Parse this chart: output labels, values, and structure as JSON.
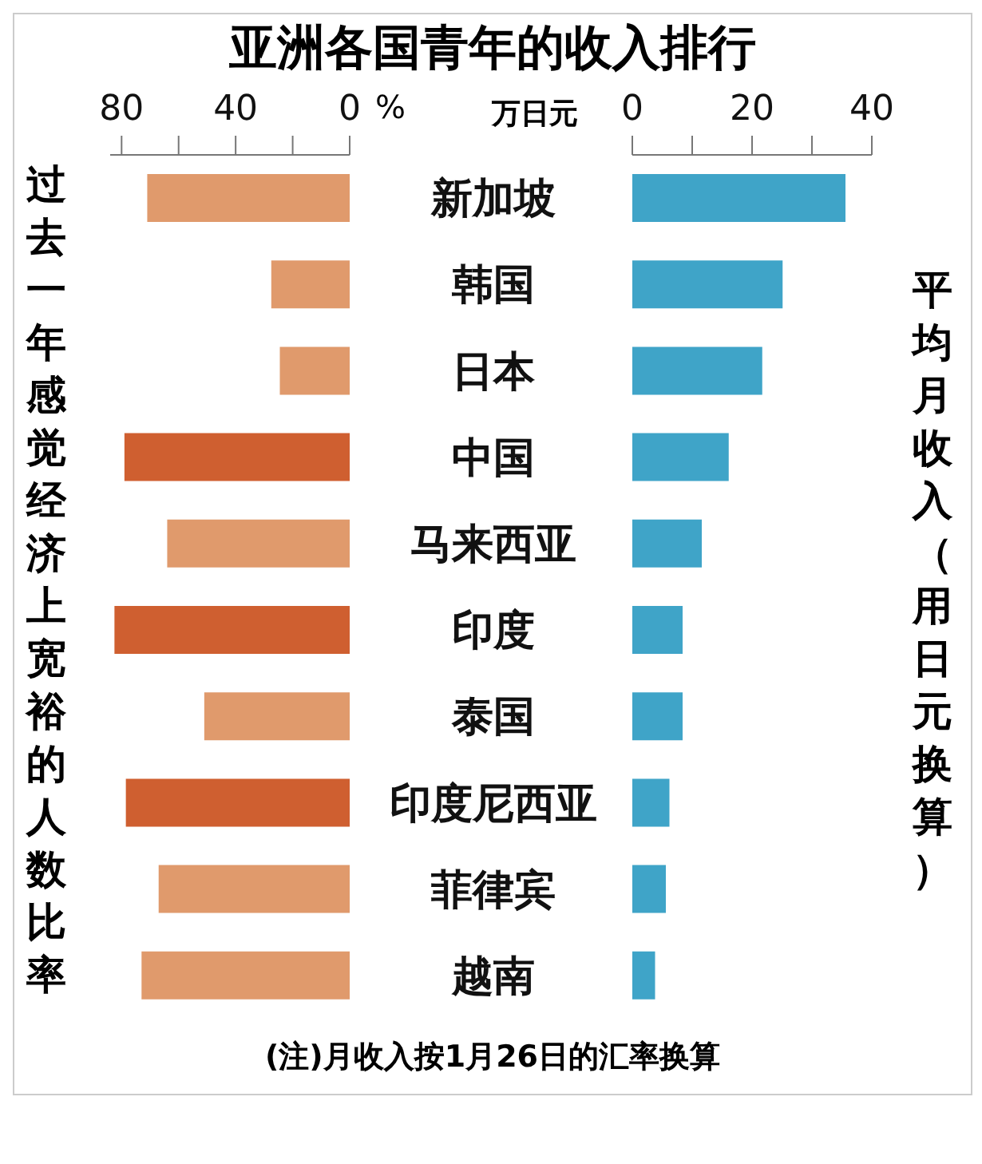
{
  "chart_data": [
    {
      "type": "bar",
      "orientation": "horizontal",
      "title": "亚洲各国青年的收入排行",
      "xlabel": "%",
      "ylabel": "过去一年感觉经济上宽裕的人数比率",
      "categories": [
        "新加坡",
        "韩国",
        "日本",
        "中国",
        "马来西亚",
        "印度",
        "泰国",
        "印度尼西亚",
        "菲律宾",
        "越南"
      ],
      "values": [
        71,
        27.5,
        24.5,
        79,
        64,
        82.5,
        51,
        78.5,
        67,
        73
      ],
      "colors": [
        "#e09a6c",
        "#e09a6c",
        "#e09a6c",
        "#cf5f30",
        "#e09a6c",
        "#cf5f30",
        "#e09a6c",
        "#cf5f30",
        "#e09a6c",
        "#e09a6c"
      ],
      "xlim": [
        84,
        0
      ],
      "xticks": [
        80,
        {
          "value": 60,
          "label": null
        },
        40,
        {
          "value": 20,
          "label": null
        },
        0
      ],
      "grid": false,
      "legend": false
    },
    {
      "type": "bar",
      "orientation": "horizontal",
      "xlabel": "万日元",
      "ylabel": "平均月收入（用日元换算）",
      "categories": [
        null,
        null,
        null,
        null,
        null,
        null,
        null,
        null,
        null,
        null
      ],
      "values": [
        35.6,
        25.1,
        21.7,
        16.1,
        11.6,
        8.4,
        8.4,
        6.2,
        5.6,
        3.8
      ],
      "color": "#3fa4c8",
      "xlim": [
        0,
        40
      ],
      "xticks": [
        0,
        {
          "value": 10,
          "label": null
        },
        20,
        {
          "value": 30,
          "label": null
        },
        40
      ],
      "tick_labels": "x",
      "grid": false,
      "legend": false,
      "annotations": [
        "(注)月收入按1月26日的汇率换算"
      ]
    }
  ]
}
